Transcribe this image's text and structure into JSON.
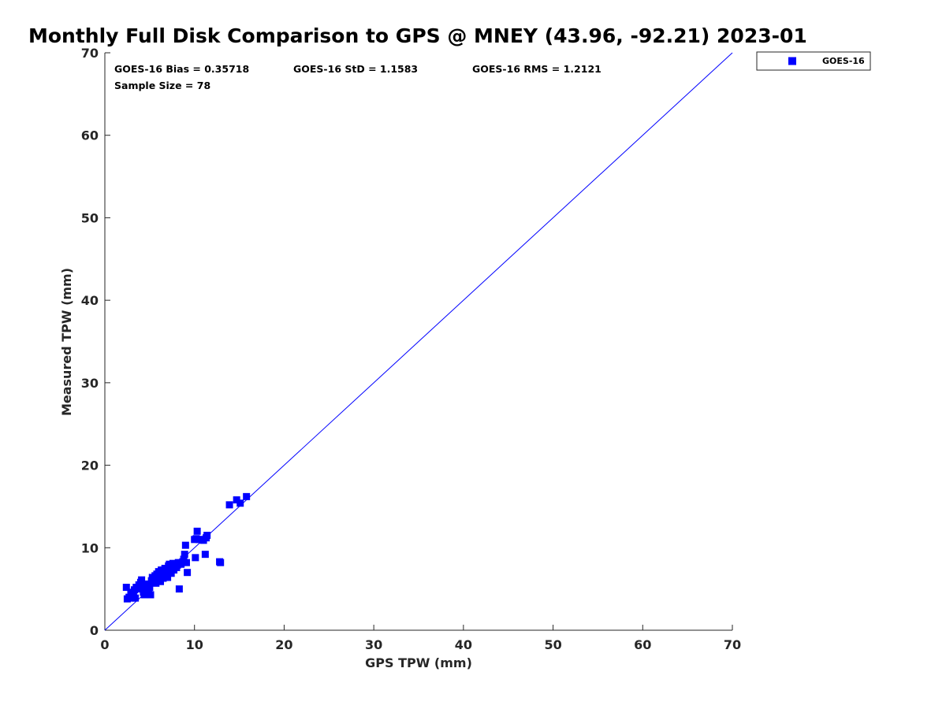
{
  "chart_data": {
    "type": "scatter",
    "title": "Monthly Full Disk Comparison to GPS @ MNEY (43.96, -92.21) 2023-01",
    "xlabel": "GPS TPW (mm)",
    "ylabel": "Measured TPW (mm)",
    "xlim": [
      0,
      70
    ],
    "ylim": [
      0,
      70
    ],
    "xticks": [
      "0",
      "10",
      "20",
      "30",
      "40",
      "50",
      "60",
      "70"
    ],
    "yticks": [
      "0",
      "10",
      "20",
      "30",
      "40",
      "50",
      "60",
      "70"
    ],
    "grid": false,
    "legend_position": "outside-top-right",
    "reference_line": {
      "from": [
        0,
        0
      ],
      "to": [
        70,
        70
      ],
      "color": "#0000ff"
    },
    "stats": {
      "bias": "GOES-16 Bias = 0.35718",
      "std": "GOES-16 StD = 1.1583",
      "rms": "GOES-16 RMS = 1.2121",
      "sample_size": "Sample Size = 78"
    },
    "series": [
      {
        "name": "GOES-16",
        "color": "#0000ff",
        "marker": "square",
        "points": [
          [
            2.4,
            5.2
          ],
          [
            2.5,
            3.8
          ],
          [
            2.7,
            4.0
          ],
          [
            2.9,
            4.6
          ],
          [
            3.0,
            3.9
          ],
          [
            3.2,
            4.3
          ],
          [
            3.3,
            4.9
          ],
          [
            3.4,
            3.9
          ],
          [
            3.5,
            5.2
          ],
          [
            3.7,
            5.0
          ],
          [
            3.8,
            5.5
          ],
          [
            4.0,
            5.8
          ],
          [
            4.1,
            6.1
          ],
          [
            4.2,
            5.3
          ],
          [
            4.3,
            4.6
          ],
          [
            4.4,
            4.3
          ],
          [
            4.5,
            5.1
          ],
          [
            4.6,
            4.8
          ],
          [
            4.7,
            5.6
          ],
          [
            4.8,
            4.4
          ],
          [
            4.9,
            4.9
          ],
          [
            5.0,
            5.2
          ],
          [
            5.1,
            4.3
          ],
          [
            5.2,
            6.0
          ],
          [
            5.3,
            6.4
          ],
          [
            5.4,
            5.8
          ],
          [
            5.5,
            6.2
          ],
          [
            5.6,
            6.6
          ],
          [
            5.7,
            5.7
          ],
          [
            5.8,
            6.8
          ],
          [
            5.9,
            6.1
          ],
          [
            6.0,
            7.1
          ],
          [
            6.1,
            6.5
          ],
          [
            6.2,
            5.9
          ],
          [
            6.3,
            7.3
          ],
          [
            6.4,
            6.9
          ],
          [
            6.5,
            6.3
          ],
          [
            6.6,
            7.2
          ],
          [
            6.7,
            7.5
          ],
          [
            6.8,
            6.7
          ],
          [
            6.9,
            7.0
          ],
          [
            7.0,
            6.4
          ],
          [
            7.1,
            7.8
          ],
          [
            7.2,
            8.0
          ],
          [
            7.3,
            7.4
          ],
          [
            7.4,
            6.9
          ],
          [
            7.5,
            7.7
          ],
          [
            7.6,
            8.1
          ],
          [
            7.7,
            7.3
          ],
          [
            7.8,
            7.9
          ],
          [
            7.9,
            8.0
          ],
          [
            8.0,
            7.6
          ],
          [
            8.1,
            7.9
          ],
          [
            8.2,
            8.2
          ],
          [
            8.3,
            5.0
          ],
          [
            8.5,
            8.0
          ],
          [
            8.7,
            8.3
          ],
          [
            8.8,
            8.6
          ],
          [
            8.9,
            9.2
          ],
          [
            9.0,
            10.3
          ],
          [
            9.1,
            8.2
          ],
          [
            9.2,
            7.0
          ],
          [
            10.0,
            11.0
          ],
          [
            10.1,
            8.8
          ],
          [
            10.2,
            11.1
          ],
          [
            10.3,
            12.0
          ],
          [
            10.5,
            11.0
          ],
          [
            10.8,
            11.0
          ],
          [
            11.0,
            10.9
          ],
          [
            11.2,
            9.2
          ],
          [
            11.3,
            11.2
          ],
          [
            11.4,
            11.5
          ],
          [
            12.9,
            8.2
          ],
          [
            13.9,
            15.2
          ],
          [
            14.7,
            15.8
          ],
          [
            15.1,
            15.4
          ],
          [
            15.8,
            16.2
          ],
          [
            12.8,
            8.3
          ]
        ]
      }
    ]
  }
}
